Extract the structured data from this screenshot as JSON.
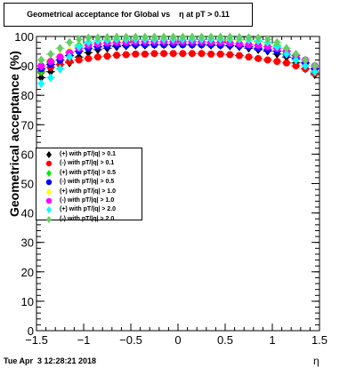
{
  "chart_data": {
    "type": "scatter",
    "title": "Geometrical acceptance for Global vs    η at pT > 0.11",
    "xlabel": "η",
    "ylabel": "Geometrical acceptance (%)",
    "xlim": [
      -1.5,
      1.5
    ],
    "ylim": [
      0,
      100
    ],
    "x_ticks": [
      -1.5,
      -1,
      -0.5,
      0,
      0.5,
      1,
      1.5
    ],
    "x_tick_labels": [
      "−1.5",
      "−1",
      "−0.5",
      "0",
      "0.5",
      "1",
      "1.5"
    ],
    "y_ticks": [
      0,
      10,
      20,
      30,
      40,
      50,
      60,
      70,
      80,
      90,
      100
    ],
    "y_tick_labels": [
      "0",
      "10",
      "20",
      "30",
      "40",
      "50",
      "60",
      "70",
      "80",
      "90",
      "100"
    ],
    "grid": false,
    "legend_position": "middle-left",
    "x": [
      -1.45,
      -1.35,
      -1.25,
      -1.15,
      -1.05,
      -0.95,
      -0.85,
      -0.75,
      -0.65,
      -0.55,
      -0.45,
      -0.35,
      -0.25,
      -0.15,
      -0.05,
      0.05,
      0.15,
      0.25,
      0.35,
      0.45,
      0.55,
      0.65,
      0.75,
      0.85,
      0.95,
      1.05,
      1.15,
      1.25,
      1.35,
      1.45
    ],
    "series": [
      {
        "name": "(+) with pT/|q| > 0.1",
        "color": "#000000",
        "marker": "diamond",
        "values": [
          86,
          88,
          89,
          91,
          93,
          94.5,
          95.5,
          96,
          96.5,
          96.8,
          97,
          97,
          97.2,
          97.2,
          97.3,
          97.3,
          97.2,
          97.2,
          97,
          97,
          96.8,
          96.5,
          96,
          95.5,
          95,
          94,
          93,
          91,
          89,
          87
        ]
      },
      {
        "name": "(-) with pT/|q| > 0.1",
        "color": "#ff0000",
        "marker": "circle",
        "values": [
          88,
          89.5,
          90.5,
          91.5,
          92,
          92.5,
          93,
          93.3,
          93.6,
          93.8,
          94,
          94,
          94.2,
          94.2,
          94.2,
          94.2,
          94.2,
          94.2,
          94,
          94,
          93.8,
          93.5,
          93,
          92.5,
          92,
          91.5,
          91,
          90,
          89,
          87.5
        ]
      },
      {
        "name": "(+) with pT/|q| > 0.5",
        "color": "#00ee00",
        "marker": "diamond",
        "values": [
          88,
          91,
          93,
          95,
          97,
          98,
          98.5,
          98.7,
          98.8,
          99,
          99,
          99,
          99,
          99,
          99,
          99,
          99,
          99,
          99,
          99,
          98.8,
          98.7,
          98.5,
          98.3,
          98,
          97,
          95,
          93,
          91,
          88
        ]
      },
      {
        "name": "(-) with pT/|q| > 0.5",
        "color": "#0000ff",
        "marker": "circle",
        "values": [
          89,
          90.5,
          92,
          93.5,
          95,
          96,
          96.5,
          96.8,
          97,
          97,
          97.2,
          97.2,
          97.2,
          97.2,
          97.2,
          97.2,
          97.2,
          97.2,
          97.2,
          97,
          97,
          96.8,
          96.5,
          96,
          95.5,
          95,
          94,
          92.5,
          91,
          89
        ]
      },
      {
        "name": "(+) with pT/|q| > 1.0",
        "color": "#ffff00",
        "marker": "diamond",
        "values": [
          90,
          92,
          93.5,
          95,
          96.5,
          97.5,
          98,
          98.5,
          98.7,
          98.8,
          98.8,
          99,
          99,
          99,
          99,
          99,
          99,
          99,
          99,
          98.8,
          98.8,
          98.7,
          98.5,
          98,
          97.5,
          96.5,
          95,
          93.5,
          92,
          90
        ]
      },
      {
        "name": "(-) with pT/|q| > 1.0",
        "color": "#ff00ff",
        "marker": "circle",
        "values": [
          90,
          91.5,
          93,
          94.5,
          96,
          97,
          97.5,
          97.8,
          98,
          98,
          98.2,
          98.2,
          98.2,
          98.2,
          98.2,
          98.2,
          98.2,
          98.2,
          98,
          98,
          97.8,
          97.5,
          97.2,
          97,
          96.5,
          96,
          95,
          93.5,
          92,
          90
        ]
      },
      {
        "name": "(+) with pT/|q| > 2.0",
        "color": "#00ffff",
        "marker": "diamond",
        "values": [
          84,
          86,
          89,
          93,
          96.5,
          98,
          98.5,
          98.8,
          99,
          99,
          99,
          99,
          99,
          99,
          99,
          99,
          99,
          99,
          99,
          99,
          99,
          99,
          98.8,
          98.5,
          98,
          96.5,
          94,
          92,
          90,
          88
        ]
      },
      {
        "name": "(-) with pT/|q| > 2.0",
        "color": "#66cc66",
        "marker": "diamond",
        "values": [
          92,
          94,
          96,
          98,
          99,
          99.5,
          99.6,
          99.7,
          99.8,
          99.8,
          99.8,
          99.8,
          99.8,
          99.8,
          99.8,
          99.8,
          99.8,
          99.8,
          99.8,
          99.8,
          99.8,
          99.7,
          99.6,
          99.5,
          99,
          98,
          96,
          94,
          92,
          90
        ]
      }
    ]
  },
  "footer": {
    "date": "Tue Apr  3 12:28:21 2018"
  }
}
